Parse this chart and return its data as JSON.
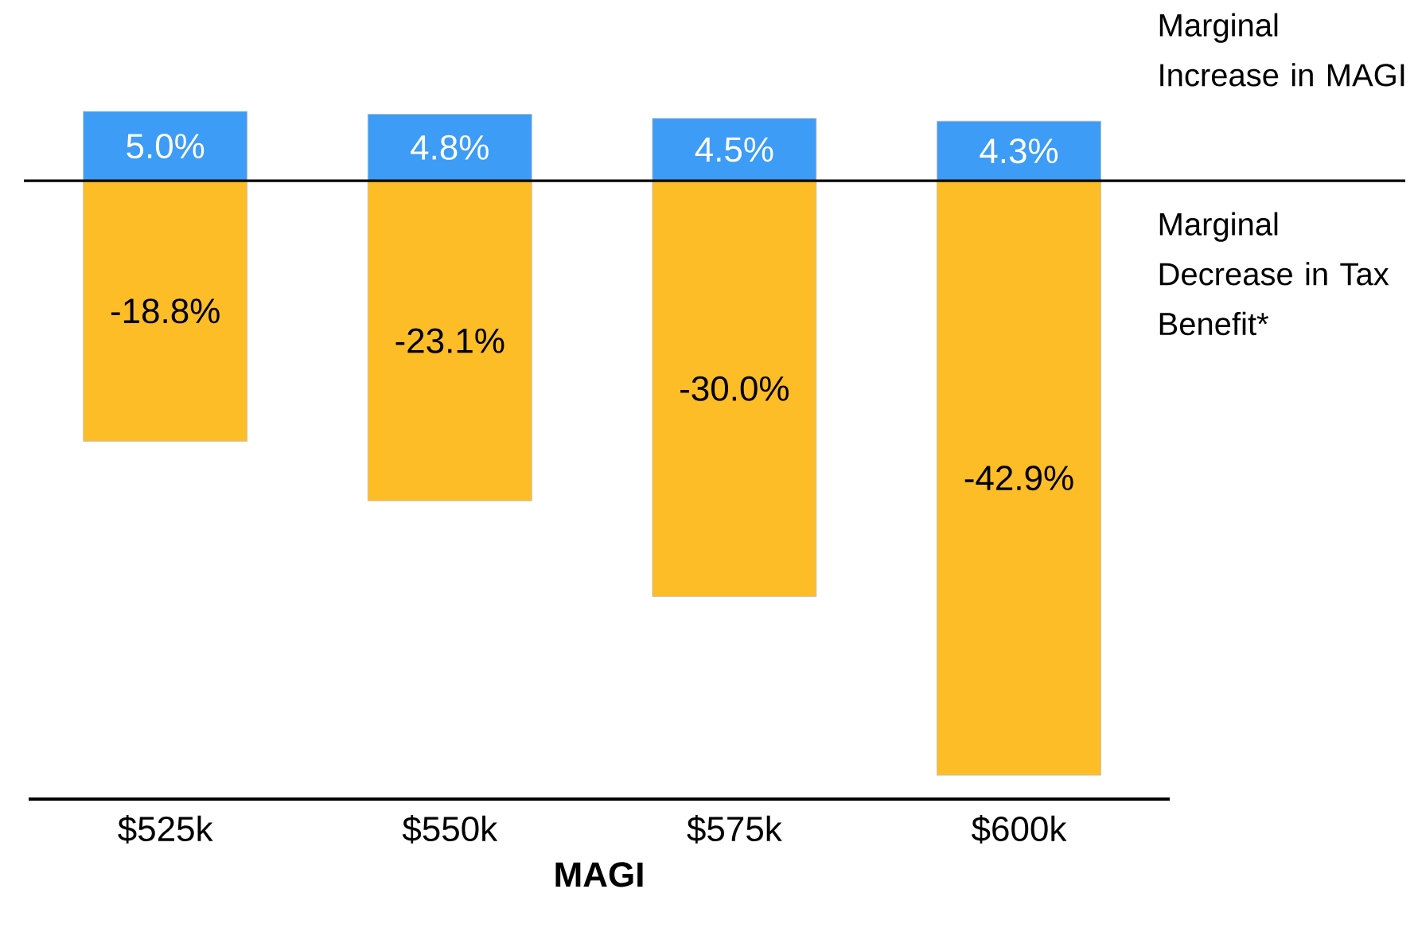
{
  "chart_data": {
    "type": "bar",
    "stacked": true,
    "xlabel": "MAGI",
    "categories": [
      "$525k",
      "$550k",
      "$575k",
      "$600k"
    ],
    "series": [
      {
        "name": "Marginal Increase in MAGI",
        "color": "#3d9cf5",
        "values": [
          5.0,
          4.8,
          4.5,
          4.3
        ],
        "value_labels": [
          "5.0%",
          "4.8%",
          "4.5%",
          "4.3%"
        ]
      },
      {
        "name": "Marginal Decrease in Tax Benefit*",
        "color": "#fdbd27",
        "values": [
          -18.8,
          -23.1,
          -30.0,
          -42.9
        ],
        "value_labels": [
          "-18.8%",
          "-23.1%",
          "-30.0%",
          "-42.9%"
        ]
      }
    ]
  }
}
